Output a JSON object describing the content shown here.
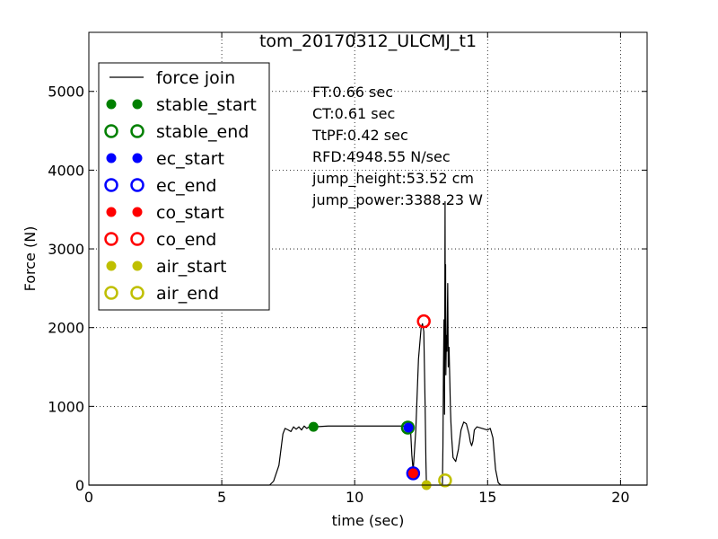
{
  "chart_data": {
    "type": "line",
    "title": "tom_20170312_ULCMJ_t1",
    "xlabel": "time (sec)",
    "ylabel": "Force (N)",
    "xlim": [
      0,
      21
    ],
    "ylim": [
      0,
      5750
    ],
    "xticks": [
      0,
      5,
      10,
      15,
      20
    ],
    "yticks": [
      0,
      1000,
      2000,
      3000,
      4000,
      5000
    ],
    "grid": true,
    "legend_position": "top-left",
    "series": [
      {
        "name": "force join",
        "color": "#000000",
        "x": [
          0,
          6.8,
          6.95,
          7.15,
          7.3,
          7.38,
          7.5,
          7.6,
          7.7,
          7.8,
          7.9,
          8.0,
          8.1,
          8.2,
          8.3,
          8.5,
          9.0,
          10.0,
          11.0,
          11.8,
          12.0,
          12.1,
          12.15,
          12.2,
          12.3,
          12.4,
          12.5,
          12.55,
          12.6,
          12.65,
          12.68,
          12.7,
          12.73,
          12.76,
          13.3,
          13.32,
          13.34,
          13.36,
          13.38,
          13.4,
          13.41,
          13.42,
          13.43,
          13.45,
          13.47,
          13.5,
          13.52,
          13.55,
          13.58,
          13.6,
          13.62,
          13.65,
          13.7,
          13.8,
          13.9,
          14.0,
          14.1,
          14.2,
          14.3,
          14.35,
          14.4,
          14.45,
          14.5,
          14.6,
          14.8,
          15.0,
          15.1,
          15.2,
          15.3,
          15.4,
          15.5,
          16.0,
          21.0
        ],
        "y": [
          0,
          0,
          50,
          250,
          650,
          720,
          700,
          680,
          740,
          710,
          740,
          700,
          750,
          720,
          745,
          740,
          750,
          750,
          750,
          750,
          740,
          720,
          380,
          180,
          700,
          1600,
          2000,
          2050,
          1950,
          1000,
          300,
          0,
          0,
          0,
          0,
          500,
          1500,
          2100,
          900,
          3600,
          1600,
          2800,
          1400,
          1900,
          1700,
          2560,
          1500,
          1750,
          1300,
          1000,
          800,
          600,
          350,
          300,
          450,
          700,
          800,
          780,
          650,
          550,
          500,
          560,
          700,
          740,
          720,
          700,
          720,
          600,
          200,
          30,
          0,
          0,
          0
        ]
      }
    ],
    "markers": [
      {
        "name": "stable_start",
        "color": "#008000",
        "fill": "filled",
        "x": 8.45,
        "y": 740
      },
      {
        "name": "stable_end",
        "color": "#008000",
        "fill": "hollow",
        "x": 12.0,
        "y": 730
      },
      {
        "name": "ec_start",
        "color": "#0000ff",
        "fill": "filled",
        "x": 12.02,
        "y": 730
      },
      {
        "name": "ec_end",
        "color": "#0000ff",
        "fill": "hollow",
        "x": 12.2,
        "y": 150
      },
      {
        "name": "co_start",
        "color": "#ff0000",
        "fill": "filled",
        "x": 12.2,
        "y": 150
      },
      {
        "name": "co_end",
        "color": "#ff0000",
        "fill": "hollow",
        "x": 12.6,
        "y": 2080
      },
      {
        "name": "air_start",
        "color": "#bfbf00",
        "fill": "filled",
        "x": 12.7,
        "y": 0
      },
      {
        "name": "air_end",
        "color": "#bfbf00",
        "fill": "hollow",
        "x": 13.4,
        "y": 60
      }
    ],
    "annotations": [
      "FT:0.66 sec",
      "CT:0.61 sec",
      "TtPF:0.42 sec",
      "RFD:4948.55 N/sec",
      "jump_height:53.52 cm",
      "jump_power:3388.23 W"
    ]
  }
}
